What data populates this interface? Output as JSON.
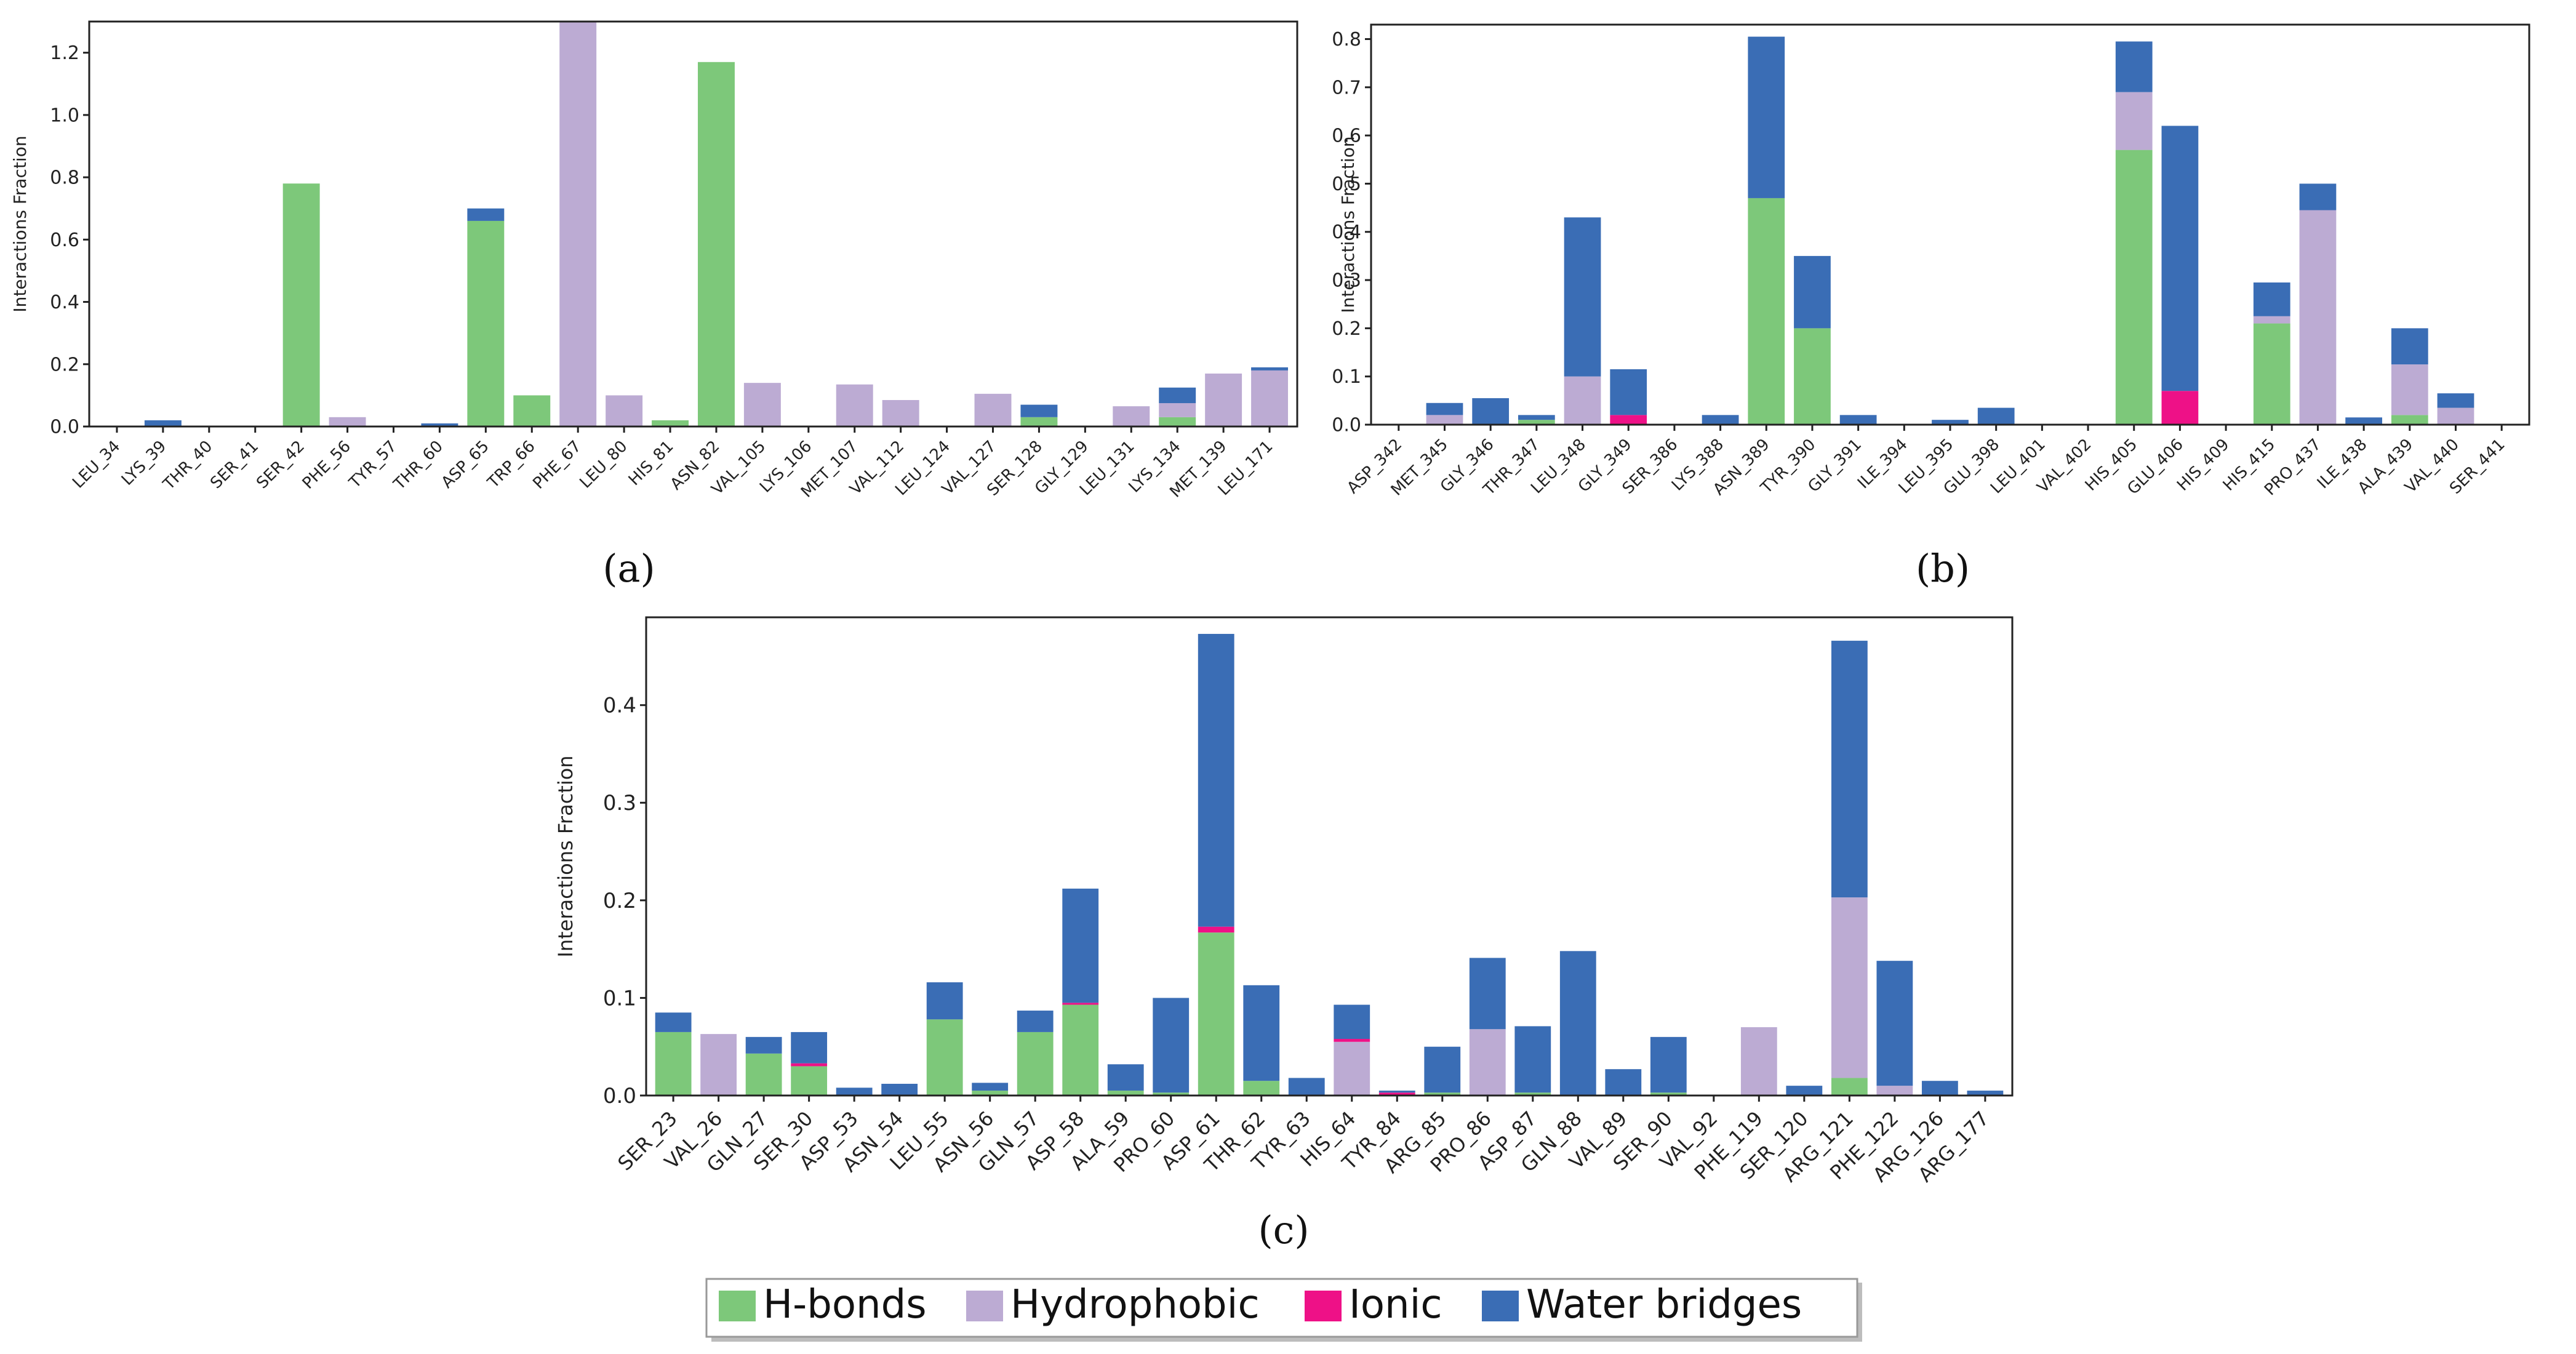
{
  "colors": {
    "hbonds": "#7dc87a",
    "hydrophobic": "#bcabd3",
    "ionic": "#ee1187",
    "water": "#3a6db5"
  },
  "legend": {
    "hbonds": "H-bonds",
    "hydrophobic": "Hydrophobic",
    "ionic": "Ionic",
    "water": "Water bridges"
  },
  "panels": {
    "a": "(a)",
    "b": "(b)",
    "c": "(c)"
  },
  "chart_data": [
    {
      "id": "a",
      "type": "bar",
      "stacked": true,
      "ylabel": "Interactions Fraction",
      "ylim": [
        0,
        1.3
      ],
      "yticks": [
        0.0,
        0.2,
        0.4,
        0.6,
        0.8,
        1.0,
        1.2
      ],
      "categories": [
        "LEU_34",
        "LYS_39",
        "THR_40",
        "SER_41",
        "SER_42",
        "PHE_56",
        "TYR_57",
        "THR_60",
        "ASP_65",
        "TRP_66",
        "PHE_67",
        "LEU_80",
        "HIS_81",
        "ASN_82",
        "VAL_105",
        "LYS_106",
        "MET_107",
        "VAL_112",
        "LEU_124",
        "VAL_127",
        "SER_128",
        "GLY_129",
        "LEU_131",
        "LYS_134",
        "MET_139",
        "LEU_171"
      ],
      "series": [
        {
          "name": "H-bonds",
          "key": "hbonds",
          "values": [
            0,
            0,
            0,
            0,
            0.78,
            0,
            0,
            0,
            0.66,
            0.1,
            0,
            0,
            0.02,
            1.17,
            0,
            0,
            0,
            0,
            0,
            0,
            0.03,
            0,
            0,
            0.03,
            0,
            0
          ]
        },
        {
          "name": "Hydrophobic",
          "key": "hydrophobic",
          "values": [
            0,
            0,
            0,
            0,
            0,
            0.03,
            0,
            0,
            0,
            0,
            1.3,
            0.1,
            0,
            0,
            0.14,
            0,
            0.135,
            0.085,
            0,
            0.105,
            0,
            0,
            0.065,
            0.045,
            0.17,
            0.18
          ]
        },
        {
          "name": "Ionic",
          "key": "ionic",
          "values": [
            0,
            0,
            0,
            0,
            0,
            0,
            0,
            0,
            0,
            0,
            0,
            0,
            0,
            0,
            0,
            0,
            0,
            0,
            0,
            0,
            0,
            0,
            0,
            0,
            0,
            0
          ]
        },
        {
          "name": "Water bridges",
          "key": "water",
          "values": [
            0,
            0.02,
            0,
            0,
            0,
            0,
            0,
            0.01,
            0.04,
            0,
            0,
            0,
            0,
            0,
            0,
            0,
            0,
            0,
            0,
            0,
            0.04,
            0,
            0,
            0.05,
            0,
            0.01
          ]
        }
      ]
    },
    {
      "id": "b",
      "type": "bar",
      "stacked": true,
      "ylabel": "Interactions Fraction",
      "ylim": [
        0,
        0.83
      ],
      "yticks": [
        0.0,
        0.1,
        0.2,
        0.3,
        0.4,
        0.5,
        0.6,
        0.7,
        0.8
      ],
      "categories": [
        "ASP_342",
        "MET_345",
        "GLY_346",
        "THR_347",
        "LEU_348",
        "GLY_349",
        "SER_386",
        "LYS_388",
        "ASN_389",
        "TYR_390",
        "GLY_391",
        "ILE_394",
        "LEU_395",
        "GLU_398",
        "LEU_401",
        "VAL_402",
        "HIS_405",
        "GLU_406",
        "HIS_409",
        "HIS_415",
        "PRO_437",
        "ILE_438",
        "ALA_439",
        "VAL_440",
        "SER_441"
      ],
      "series": [
        {
          "name": "H-bonds",
          "key": "hbonds",
          "values": [
            0,
            0,
            0,
            0.01,
            0,
            0,
            0,
            0,
            0.47,
            0.2,
            0,
            0,
            0,
            0,
            0,
            0,
            0.57,
            0,
            0,
            0.21,
            0,
            0,
            0.02,
            0,
            0
          ]
        },
        {
          "name": "Hydrophobic",
          "key": "hydrophobic",
          "values": [
            0,
            0.02,
            0,
            0,
            0.1,
            0,
            0,
            0,
            0,
            0,
            0,
            0,
            0,
            0,
            0,
            0,
            0.12,
            0,
            0,
            0.015,
            0.445,
            0,
            0.105,
            0.035,
            0
          ]
        },
        {
          "name": "Ionic",
          "key": "ionic",
          "values": [
            0,
            0,
            0,
            0,
            0,
            0.02,
            0,
            0,
            0,
            0,
            0,
            0,
            0,
            0,
            0,
            0,
            0,
            0.07,
            0,
            0,
            0,
            0,
            0,
            0,
            0
          ]
        },
        {
          "name": "Water bridges",
          "key": "water",
          "values": [
            0,
            0.025,
            0.055,
            0.01,
            0.33,
            0.095,
            0,
            0.02,
            0.335,
            0.15,
            0.02,
            0,
            0.01,
            0.035,
            0,
            0,
            0.105,
            0.55,
            0,
            0.07,
            0.055,
            0.015,
            0.075,
            0.03,
            0
          ]
        }
      ]
    },
    {
      "id": "c",
      "type": "bar",
      "stacked": true,
      "ylabel": "Interactions Fraction",
      "ylim": [
        0,
        0.49
      ],
      "yticks": [
        0.0,
        0.1,
        0.2,
        0.3,
        0.4
      ],
      "categories": [
        "SER_23",
        "VAL_26",
        "GLN_27",
        "SER_30",
        "ASP_53",
        "ASN_54",
        "LEU_55",
        "ASN_56",
        "GLN_57",
        "ASP_58",
        "ALA_59",
        "PRO_60",
        "ASP_61",
        "THR_62",
        "TYR_63",
        "HIS_64",
        "TYR_84",
        "ARG_85",
        "PRO_86",
        "ASP_87",
        "GLN_88",
        "VAL_89",
        "SER_90",
        "VAL_92",
        "PHE_119",
        "SER_120",
        "ARG_121",
        "PHE_122",
        "ARG_126",
        "ARG_177"
      ],
      "series": [
        {
          "name": "H-bonds",
          "key": "hbonds",
          "values": [
            0.065,
            0,
            0.043,
            0.03,
            0,
            0,
            0.078,
            0.005,
            0.065,
            0.093,
            0.005,
            0.003,
            0.167,
            0.015,
            0,
            0,
            0,
            0.003,
            0,
            0.003,
            0,
            0,
            0.003,
            0,
            0,
            0,
            0.018,
            0,
            0,
            0
          ]
        },
        {
          "name": "Hydrophobic",
          "key": "hydrophobic",
          "values": [
            0,
            0.063,
            0,
            0,
            0,
            0,
            0,
            0,
            0,
            0,
            0,
            0,
            0,
            0,
            0,
            0.055,
            0,
            0,
            0.068,
            0,
            0,
            0,
            0,
            0,
            0.07,
            0,
            0.185,
            0.01,
            0,
            0
          ]
        },
        {
          "name": "Ionic",
          "key": "ionic",
          "values": [
            0,
            0,
            0,
            0.003,
            0,
            0,
            0,
            0,
            0,
            0.002,
            0,
            0,
            0.006,
            0,
            0,
            0.003,
            0.003,
            0,
            0,
            0,
            0,
            0,
            0,
            0,
            0,
            0,
            0,
            0,
            0,
            0
          ]
        },
        {
          "name": "Water bridges",
          "key": "water",
          "values": [
            0.02,
            0,
            0.017,
            0.032,
            0.008,
            0.012,
            0.038,
            0.008,
            0.022,
            0.117,
            0.027,
            0.097,
            0.3,
            0.098,
            0.018,
            0.035,
            0.002,
            0.047,
            0.073,
            0.068,
            0.148,
            0.027,
            0.057,
            0,
            0,
            0.01,
            0.263,
            0.128,
            0.015,
            0.005
          ]
        }
      ]
    }
  ]
}
